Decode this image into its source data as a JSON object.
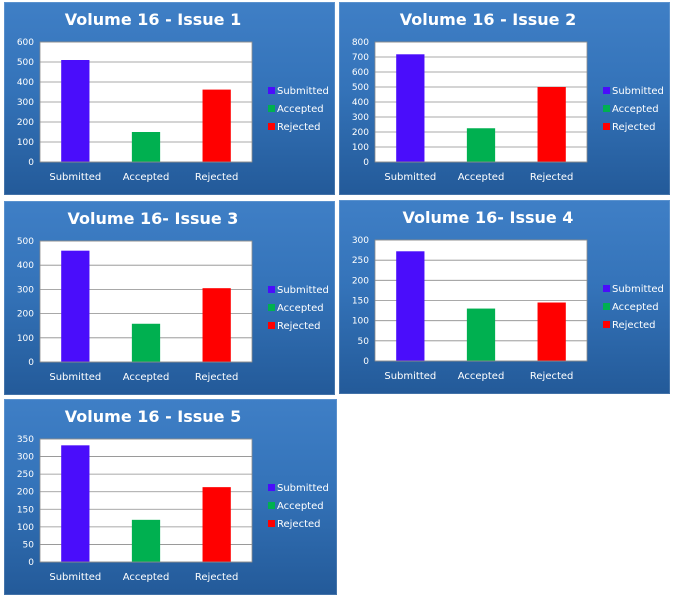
{
  "colors": {
    "Submitted": "#4a0dfb",
    "Accepted": "#00b050",
    "Rejected": "#ff0000"
  },
  "chart_data": [
    {
      "type": "bar",
      "title": "Volume 16 - Issue 1",
      "categories": [
        "Submitted",
        "Accepted",
        "Rejected"
      ],
      "values": [
        510,
        150,
        362
      ],
      "yticks": [
        0,
        100,
        200,
        300,
        400,
        500,
        600
      ],
      "ylim": [
        0,
        600
      ],
      "legend": [
        "Submitted",
        "Accepted",
        "Rejected"
      ],
      "legend_position": "right",
      "grid": true
    },
    {
      "type": "bar",
      "title": "Volume 16 - Issue 2",
      "categories": [
        "Submitted",
        "Accepted",
        "Rejected"
      ],
      "values": [
        718,
        225,
        500
      ],
      "yticks": [
        0,
        100,
        200,
        300,
        400,
        500,
        600,
        700,
        800
      ],
      "ylim": [
        0,
        800
      ],
      "legend": [
        "Submitted",
        "Accepted",
        "Rejected"
      ],
      "legend_position": "right",
      "grid": true
    },
    {
      "type": "bar",
      "title": "Volume 16- Issue 3",
      "categories": [
        "Submitted",
        "Accepted",
        "Rejected"
      ],
      "values": [
        460,
        158,
        305
      ],
      "yticks": [
        0,
        100,
        200,
        300,
        400,
        500
      ],
      "ylim": [
        0,
        500
      ],
      "legend": [
        "Submitted",
        "Accepted",
        "Rejected"
      ],
      "legend_position": "right",
      "grid": true
    },
    {
      "type": "bar",
      "title": "Volume 16- Issue 4",
      "categories": [
        "Submitted",
        "Accepted",
        "Rejected"
      ],
      "values": [
        272,
        130,
        145
      ],
      "yticks": [
        0,
        50,
        100,
        150,
        200,
        250,
        300
      ],
      "ylim": [
        0,
        300
      ],
      "legend": [
        "Submitted",
        "Accepted",
        "Rejected"
      ],
      "legend_position": "right",
      "grid": true
    },
    {
      "type": "bar",
      "title": "Volume 16 - Issue 5",
      "categories": [
        "Submitted",
        "Accepted",
        "Rejected"
      ],
      "values": [
        332,
        120,
        213
      ],
      "yticks": [
        0,
        50,
        100,
        150,
        200,
        250,
        300,
        350
      ],
      "ylim": [
        0,
        350
      ],
      "legend": [
        "Submitted",
        "Accepted",
        "Rejected"
      ],
      "legend_position": "right",
      "grid": true
    }
  ]
}
